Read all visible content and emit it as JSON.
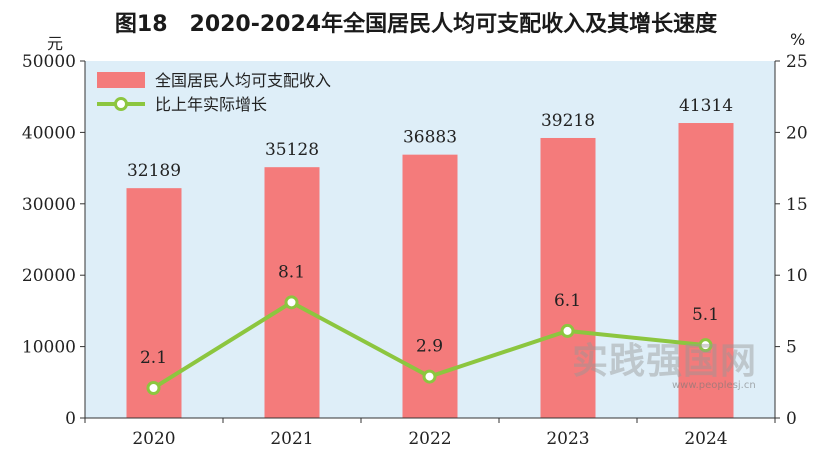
{
  "title": "图18　2020-2024年全国居民人均可支配收入及其增长速度",
  "watermark": {
    "text": "实践强国网",
    "url": "www.peoplesj.cn"
  },
  "chart_data": {
    "type": "bar",
    "title": "图18　2020-2024年全国居民人均可支配收入及其增长速度",
    "categories": [
      "2020",
      "2021",
      "2022",
      "2023",
      "2024"
    ],
    "y_left": {
      "unit": "元",
      "ylim": [
        0,
        50000
      ],
      "ticks": [
        "0",
        "10000",
        "20000",
        "30000",
        "40000",
        "50000"
      ]
    },
    "y_right": {
      "unit": "%",
      "ylim": [
        0,
        25
      ],
      "ticks": [
        "0",
        "5",
        "10",
        "15",
        "20",
        "25"
      ]
    },
    "series": [
      {
        "name": "全国居民人均可支配收入",
        "type": "bar",
        "axis": "left",
        "values": [
          32189,
          35128,
          36883,
          39218,
          41314
        ],
        "labels": [
          "32189",
          "35128",
          "36883",
          "39218",
          "41314"
        ],
        "color": "#f47b7b"
      },
      {
        "name": "比上年实际增长",
        "type": "line",
        "axis": "right",
        "values": [
          2.1,
          8.1,
          2.9,
          6.1,
          5.1
        ],
        "labels": [
          "2.1",
          "8.1",
          "2.9",
          "6.1",
          "5.1"
        ],
        "color": "#8cc63f"
      }
    ],
    "legend_position": "top-left",
    "plot_background": "#deeef8",
    "grid": false
  }
}
